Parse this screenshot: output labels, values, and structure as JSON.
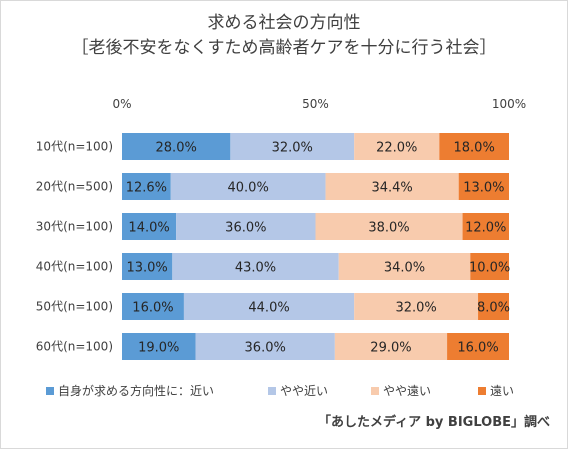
{
  "title_line1": "求める社会の方向性",
  "title_line2": "［老後不安をなくすため高齢者ケアを十分に行う社会］",
  "source": "「あしたメディア by BIGLOBE」調べ",
  "chart_data": {
    "type": "bar",
    "orientation": "horizontal",
    "stacked": "percent",
    "title": "求める社会の方向性 ［老後不安をなくすため高齢者ケアを十分に行う社会］",
    "x_ticks": [
      "0%",
      "50%",
      "100%"
    ],
    "xlim": [
      0,
      100
    ],
    "legend_position": "bottom",
    "categories": [
      "10代(n=100)",
      "20代(n=500)",
      "30代(n=100)",
      "40代(n=100)",
      "50代(n=100)",
      "60代(n=100)"
    ],
    "series": [
      {
        "name": "自身が求める方向性に：近い",
        "color": "#5b9bd5",
        "values": [
          28.0,
          12.6,
          14.0,
          13.0,
          16.0,
          19.0
        ],
        "labels": [
          "28.0%",
          "12.6%",
          "14.0%",
          "13.0%",
          "16.0%",
          "19.0%"
        ]
      },
      {
        "name": "やや近い",
        "color": "#b4c7e7",
        "values": [
          32.0,
          40.0,
          36.0,
          43.0,
          44.0,
          36.0
        ],
        "labels": [
          "32.0%",
          "40.0%",
          "36.0%",
          "43.0%",
          "44.0%",
          "36.0%"
        ]
      },
      {
        "name": "やや遠い",
        "color": "#f8cbad",
        "values": [
          22.0,
          34.4,
          38.0,
          34.0,
          32.0,
          29.0
        ],
        "labels": [
          "22.0%",
          "34.4%",
          "38.0%",
          "34.0%",
          "32.0%",
          "29.0%"
        ]
      },
      {
        "name": "遠い",
        "color": "#ed7d31",
        "values": [
          18.0,
          13.0,
          12.0,
          10.0,
          8.0,
          16.0
        ],
        "labels": [
          "18.0%",
          "13.0%",
          "12.0%",
          "10.0%",
          "8.0%",
          "16.0%"
        ]
      }
    ]
  }
}
